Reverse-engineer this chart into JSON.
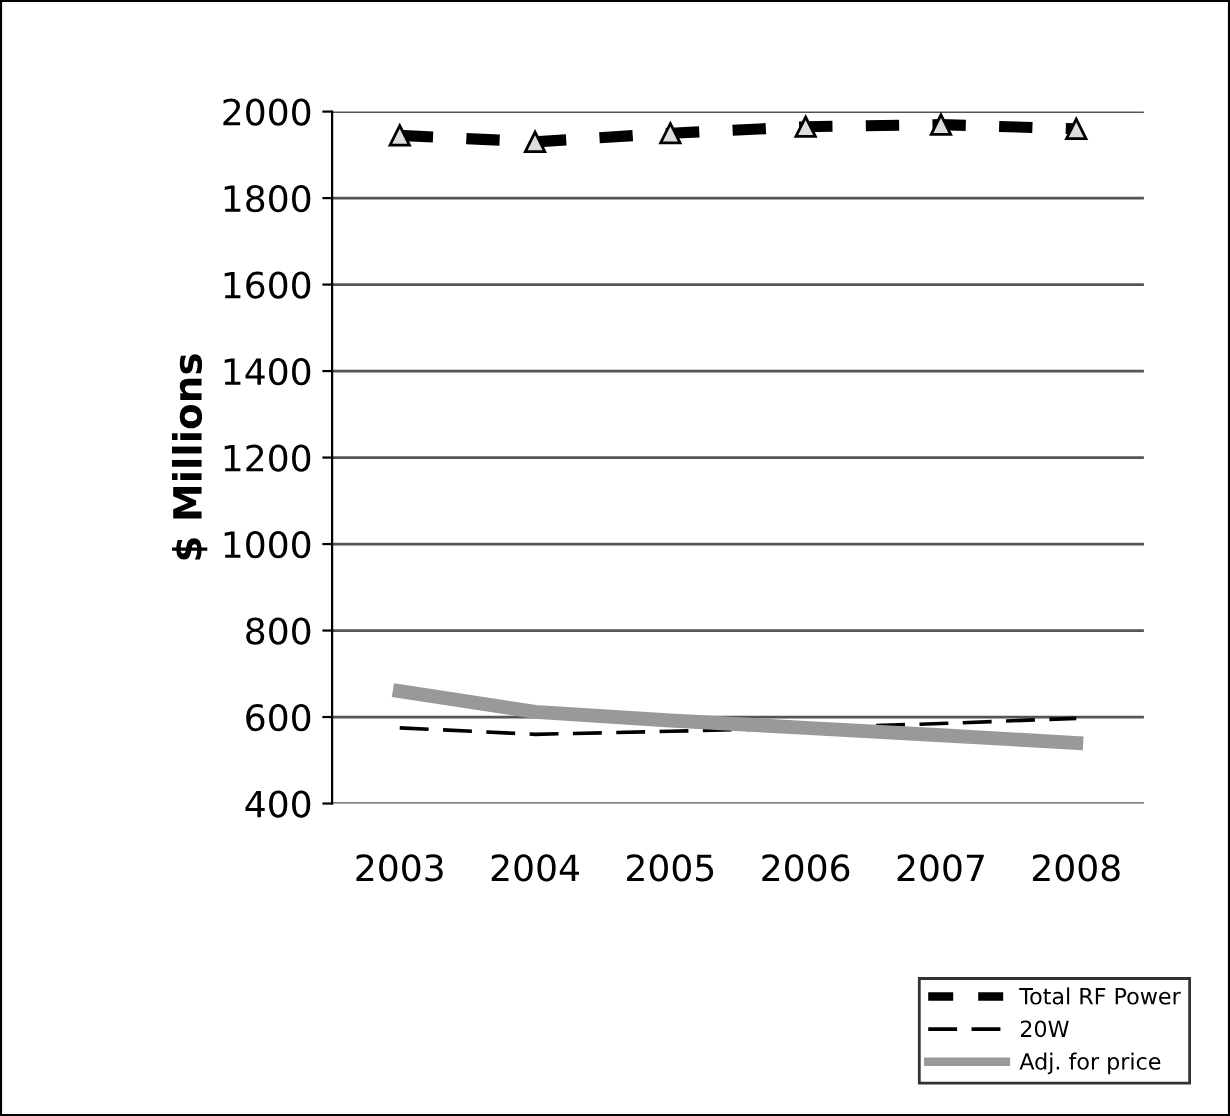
{
  "chart_data": {
    "type": "line",
    "ylabel": "$ Millions",
    "categories": [
      "2003",
      "2004",
      "2005",
      "2006",
      "2007",
      "2008"
    ],
    "series": [
      {
        "name": "Total RF Power",
        "color": "#000000",
        "values": [
          1945,
          1930,
          1950,
          1965,
          1970,
          1960
        ],
        "line_style": "dashed",
        "marker": "triangle"
      },
      {
        "name": "20W",
        "color": "#000000",
        "values": [
          575,
          560,
          567,
          575,
          585,
          597
        ],
        "line_style": "dashed",
        "marker": "none"
      },
      {
        "name": "Adj. for price",
        "color": "#999999",
        "values": [
          660,
          612,
          592,
          575,
          558,
          540
        ],
        "line_style": "solid",
        "marker": "none"
      }
    ],
    "ylim": [
      400,
      2000
    ],
    "yticks": [
      400,
      600,
      800,
      1000,
      1200,
      1400,
      1600,
      1800,
      2000
    ],
    "grid": "y",
    "legend": "bottom right"
  }
}
